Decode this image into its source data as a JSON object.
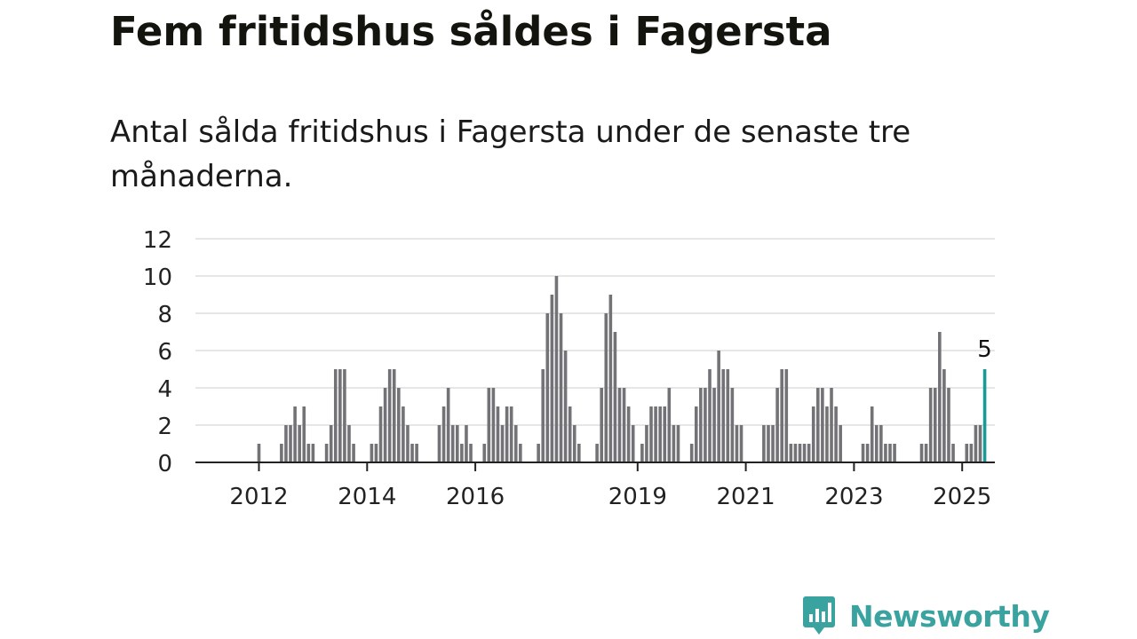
{
  "title": "Fem fritidshus såldes i Fagersta",
  "subtitle": "Antal sålda fritidshus i Fagersta under de senaste tre månaderna.",
  "brand": {
    "name": "Newsworthy",
    "color": "#3aa3a0",
    "icon": "bar-chart-bubble-icon"
  },
  "colors": {
    "bar": "#737377",
    "highlight": "#1a9a95",
    "grid": "#dddddd",
    "axis": "#222222"
  },
  "chart_data": {
    "type": "bar",
    "title": "",
    "xlabel": "",
    "ylabel": "",
    "ylim": [
      0,
      12
    ],
    "yticks": [
      0,
      2,
      4,
      6,
      8,
      10,
      12
    ],
    "grid": true,
    "x_start": "2011-01",
    "x_tick_labels": [
      {
        "label": "2012",
        "date": "2012-01"
      },
      {
        "label": "2014",
        "date": "2014-01"
      },
      {
        "label": "2016",
        "date": "2016-01"
      },
      {
        "label": "2019",
        "date": "2019-01"
      },
      {
        "label": "2021",
        "date": "2021-01"
      },
      {
        "label": "2023",
        "date": "2023-01"
      },
      {
        "label": "2025",
        "date": "2025-01"
      }
    ],
    "values": [
      0,
      0,
      0,
      0,
      0,
      0,
      0,
      0,
      0,
      0,
      0,
      0,
      1,
      0,
      0,
      0,
      0,
      1,
      2,
      2,
      3,
      2,
      3,
      1,
      1,
      0,
      0,
      1,
      2,
      5,
      5,
      5,
      2,
      1,
      0,
      0,
      0,
      1,
      1,
      3,
      4,
      5,
      5,
      4,
      3,
      2,
      1,
      1,
      0,
      0,
      0,
      0,
      2,
      3,
      4,
      2,
      2,
      1,
      2,
      1,
      0,
      0,
      1,
      4,
      4,
      3,
      2,
      3,
      3,
      2,
      1,
      0,
      0,
      0,
      1,
      5,
      8,
      9,
      10,
      8,
      6,
      3,
      2,
      1,
      0,
      0,
      0,
      1,
      4,
      8,
      9,
      7,
      4,
      4,
      3,
      2,
      0,
      1,
      2,
      3,
      3,
      3,
      3,
      4,
      2,
      2,
      0,
      0,
      1,
      3,
      4,
      4,
      5,
      4,
      6,
      5,
      5,
      4,
      2,
      2,
      0,
      0,
      0,
      0,
      2,
      2,
      2,
      4,
      5,
      5,
      1,
      1,
      1,
      1,
      1,
      3,
      4,
      4,
      3,
      4,
      3,
      2,
      0,
      0,
      0,
      0,
      1,
      1,
      3,
      2,
      2,
      1,
      1,
      1,
      0,
      0,
      0,
      0,
      0,
      1,
      1,
      4,
      4,
      7,
      5,
      4,
      1,
      0,
      0,
      1,
      1,
      2,
      2,
      5
    ],
    "highlight": {
      "date": "2025-06",
      "value": 5,
      "label": "5"
    }
  }
}
